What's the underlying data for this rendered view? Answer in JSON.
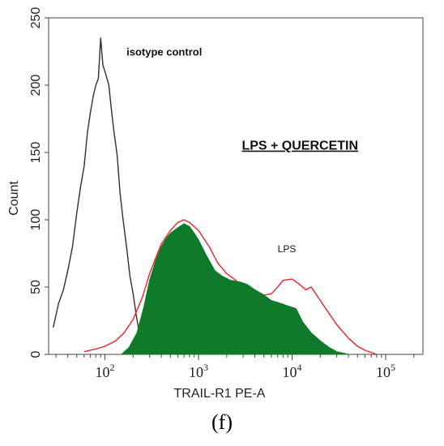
{
  "chart_data": {
    "type": "area",
    "title": "",
    "xlabel": "TRAIL-R1 PE-A",
    "ylabel": "Count",
    "xscale": "log",
    "xlim": [
      25,
      250000
    ],
    "ylim": [
      0,
      250
    ],
    "y_ticks": [
      "0",
      "50",
      "100",
      "150",
      "200",
      "250"
    ],
    "x_ticks": [
      {
        "base": "10",
        "exp": "2",
        "value": 100
      },
      {
        "base": "10",
        "exp": "3",
        "value": 1000
      },
      {
        "base": "10",
        "exp": "4",
        "value": 10000
      },
      {
        "base": "10",
        "exp": "5",
        "value": 100000
      }
    ],
    "annotations": [
      {
        "text": "isotype control",
        "x": 170,
        "y": 222,
        "style": "bold"
      },
      {
        "text": "LPS + QUERCETIN",
        "x": 2900,
        "y": 152,
        "style": "bold-underline"
      },
      {
        "text": "LPS",
        "x": 7000,
        "y": 76,
        "style": "normal"
      }
    ],
    "series": [
      {
        "label": "isotype control",
        "color": "#3a2a2a",
        "fill": "none",
        "x": [
          28,
          32,
          36,
          40,
          45,
          50,
          55,
          60,
          65,
          70,
          75,
          80,
          85,
          90,
          95,
          100,
          105,
          110,
          118,
          125,
          135,
          145,
          155,
          170,
          185,
          200,
          215,
          230,
          250,
          270,
          300
        ],
        "y": [
          20,
          38,
          48,
          62,
          80,
          105,
          125,
          140,
          165,
          180,
          192,
          200,
          205,
          235,
          215,
          210,
          205,
          200,
          180,
          165,
          148,
          120,
          102,
          80,
          58,
          45,
          30,
          18,
          10,
          4,
          0
        ]
      },
      {
        "label": "LPS",
        "color": "#e8232a",
        "fill": "none",
        "x": [
          60,
          80,
          100,
          130,
          160,
          200,
          250,
          300,
          350,
          400,
          500,
          600,
          700,
          800,
          1000,
          1300,
          1600,
          2000,
          2500,
          3000,
          4000,
          5000,
          6000,
          7000,
          8000,
          10000,
          12000,
          14000,
          16000,
          20000,
          25000,
          30000,
          40000,
          50000,
          60000,
          80000
        ],
        "y": [
          2,
          4,
          6,
          10,
          16,
          26,
          42,
          60,
          72,
          82,
          92,
          98,
          100,
          98,
          92,
          80,
          68,
          60,
          55,
          50,
          46,
          44,
          45,
          50,
          55,
          56,
          52,
          48,
          50,
          40,
          30,
          22,
          12,
          6,
          3,
          0
        ]
      },
      {
        "label": "LPS + QUERCETIN",
        "color": "#0f7a2a",
        "fill": "#0f7a2a",
        "x": [
          150,
          180,
          220,
          260,
          300,
          350,
          400,
          450,
          500,
          600,
          700,
          800,
          900,
          1000,
          1200,
          1500,
          1800,
          2200,
          2700,
          3300,
          4000,
          5000,
          6000,
          7500,
          9000,
          11000,
          13000,
          16000,
          20000,
          25000,
          30000,
          40000
        ],
        "y": [
          0,
          5,
          16,
          35,
          55,
          70,
          80,
          86,
          90,
          94,
          97,
          95,
          90,
          85,
          74,
          62,
          58,
          55,
          54,
          52,
          48,
          44,
          40,
          38,
          36,
          34,
          24,
          16,
          10,
          5,
          2,
          0
        ]
      }
    ],
    "panel_label": "(f)"
  }
}
